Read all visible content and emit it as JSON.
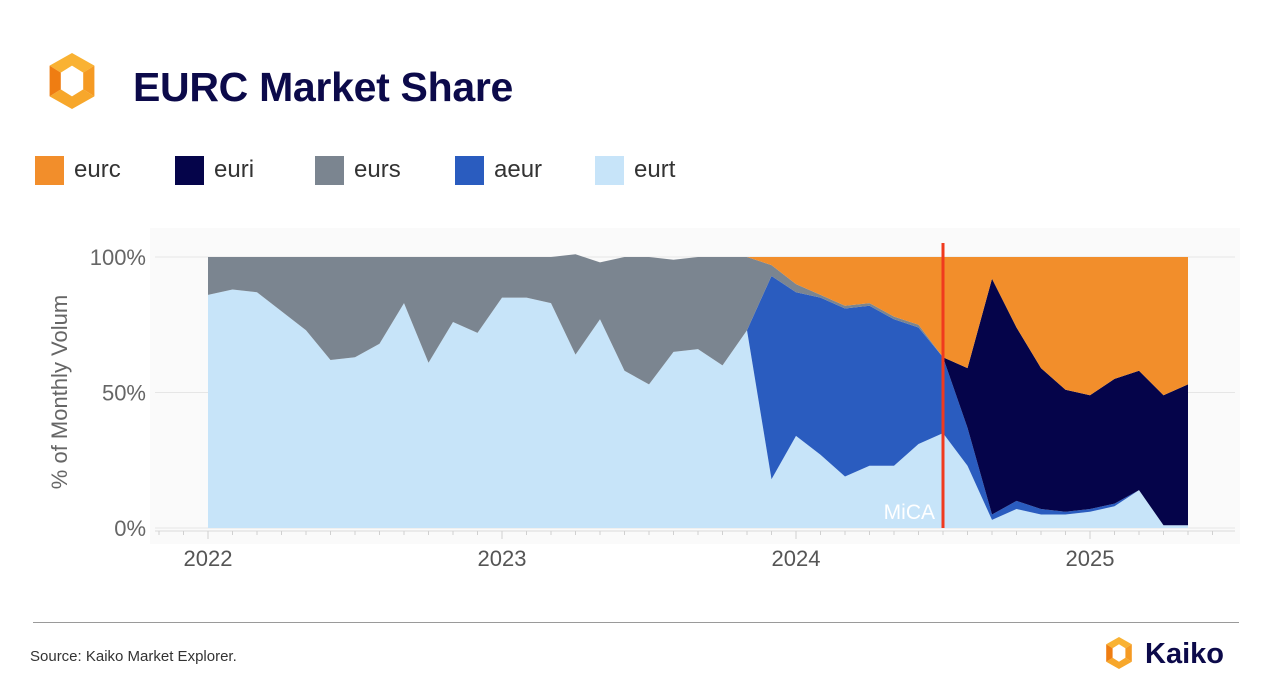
{
  "title": "EURC Market Share",
  "source": "Source: Kaiko Market Explorer.",
  "brand": {
    "name": "Kaiko"
  },
  "icons": {
    "header_logo": "kaiko-logo-icon",
    "footer_logo": "kaiko-logo-icon"
  },
  "colors": {
    "eurc": "#f28e2b",
    "euri": "#05044a",
    "eurs": "#7b8590",
    "aeur": "#2a5cbf",
    "eurt": "#c7e4f9",
    "mica": "#f03a1e",
    "logo_orange": "#f59a23"
  },
  "chart_data": {
    "type": "area",
    "stacked": true,
    "normalized_percent": true,
    "ylabel": "% of Monthly Volum",
    "xlabel": "",
    "ylim": [
      0,
      100
    ],
    "yticks": [
      "0%",
      "50%",
      "100%"
    ],
    "xticks": [
      "2022",
      "2023",
      "2024",
      "2025"
    ],
    "grid": true,
    "legend_position": "top-left",
    "x": [
      "2022-01",
      "2022-02",
      "2022-03",
      "2022-04",
      "2022-05",
      "2022-06",
      "2022-07",
      "2022-08",
      "2022-09",
      "2022-10",
      "2022-11",
      "2022-12",
      "2023-01",
      "2023-02",
      "2023-03",
      "2023-04",
      "2023-05",
      "2023-06",
      "2023-07",
      "2023-08",
      "2023-09",
      "2023-10",
      "2023-11",
      "2023-12",
      "2024-01",
      "2024-02",
      "2024-03",
      "2024-04",
      "2024-05",
      "2024-06",
      "2024-07",
      "2024-08",
      "2024-09",
      "2024-10",
      "2024-11",
      "2024-12",
      "2025-01",
      "2025-02",
      "2025-03",
      "2025-04",
      "2025-05"
    ],
    "series": [
      {
        "name": "eurt",
        "values": [
          86,
          88,
          87,
          80,
          73,
          62,
          63,
          68,
          83,
          61,
          76,
          72,
          85,
          85,
          83,
          64,
          77,
          58,
          53,
          65,
          66,
          60,
          73,
          18,
          34,
          27,
          19,
          23,
          23,
          31,
          35,
          23,
          3,
          7,
          5,
          5,
          6,
          8,
          14,
          1,
          1
        ]
      },
      {
        "name": "aeur",
        "values": [
          0,
          0,
          0,
          0,
          0,
          0,
          0,
          0,
          0,
          0,
          0,
          0,
          0,
          0,
          0,
          0,
          0,
          0,
          0,
          0,
          0,
          0,
          0,
          75,
          53,
          58,
          62,
          59,
          54,
          43,
          28,
          14,
          2,
          3,
          2,
          1,
          1,
          1,
          0,
          0,
          0
        ]
      },
      {
        "name": "euri",
        "values": [
          0,
          0,
          0,
          0,
          0,
          0,
          0,
          0,
          0,
          0,
          0,
          0,
          0,
          0,
          0,
          0,
          0,
          0,
          0,
          0,
          0,
          0,
          0,
          0,
          0,
          0,
          0,
          0,
          0,
          0,
          0,
          22,
          87,
          64,
          52,
          45,
          42,
          46,
          44,
          48,
          52
        ]
      },
      {
        "name": "eurs",
        "values": [
          14,
          12,
          13,
          20,
          27,
          38,
          37,
          32,
          17,
          39,
          24,
          28,
          15,
          15,
          17,
          37,
          21,
          42,
          47,
          34,
          34,
          40,
          27,
          4,
          3,
          1,
          1,
          1,
          1,
          1,
          0,
          0,
          0,
          0,
          0,
          0,
          0,
          0,
          0,
          0,
          0
        ]
      },
      {
        "name": "eurc",
        "values": [
          0,
          0,
          0,
          0,
          0,
          0,
          0,
          0,
          0,
          0,
          0,
          0,
          0,
          0,
          0,
          0,
          0,
          0,
          0,
          0,
          0,
          0,
          0,
          3,
          10,
          14,
          18,
          17,
          22,
          25,
          37,
          41,
          8,
          26,
          41,
          49,
          51,
          45,
          42,
          51,
          47
        ]
      }
    ],
    "annotations": [
      {
        "label": "MiCA",
        "x": "2024-07-01"
      }
    ]
  }
}
